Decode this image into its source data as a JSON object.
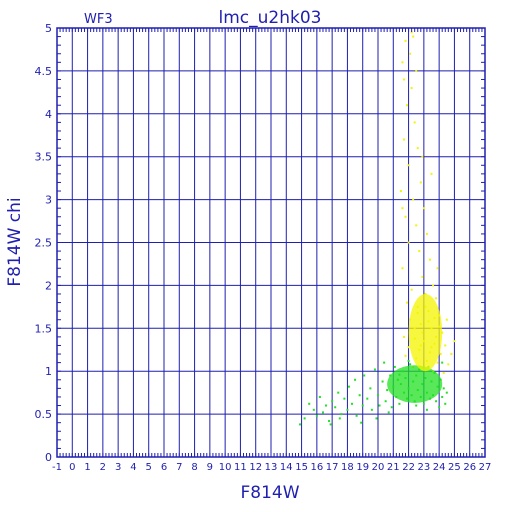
{
  "chart_data": {
    "type": "scatter",
    "title": "lmc_u2hk03",
    "corner_label": "WF3",
    "xlabel": "F814W",
    "ylabel": "F814W chi",
    "xlim": [
      -1,
      27
    ],
    "ylim": [
      0,
      5
    ],
    "x_ticks": [
      "-1",
      "0",
      "1",
      "2",
      "3",
      "4",
      "5",
      "6",
      "7",
      "8",
      "9",
      "10",
      "11",
      "12",
      "13",
      "14",
      "15",
      "16",
      "17",
      "18",
      "19",
      "20",
      "21",
      "22",
      "23",
      "24",
      "25",
      "26",
      "27"
    ],
    "y_ticks": [
      "0",
      "0.5",
      "1",
      "1.5",
      "2",
      "2.5",
      "3",
      "3.5",
      "4",
      "4.5",
      "5"
    ],
    "grid": true,
    "colors": {
      "axis": "#1f1fb0",
      "grid": "#1f1fb0",
      "green": "#22e022",
      "yellow": "#f4f400"
    },
    "series": [
      {
        "color": "green",
        "points": [
          [
            14.9,
            0.38
          ],
          [
            15.2,
            0.45
          ],
          [
            15.5,
            0.62
          ],
          [
            15.8,
            0.55
          ],
          [
            16.0,
            0.48
          ],
          [
            16.2,
            0.7
          ],
          [
            16.4,
            0.52
          ],
          [
            16.6,
            0.6
          ],
          [
            16.8,
            0.42
          ],
          [
            17.0,
            0.65
          ],
          [
            17.2,
            0.58
          ],
          [
            17.4,
            0.75
          ],
          [
            17.6,
            0.5
          ],
          [
            17.8,
            0.68
          ],
          [
            18.0,
            0.55
          ],
          [
            18.1,
            0.82
          ],
          [
            18.3,
            0.62
          ],
          [
            18.5,
            0.9
          ],
          [
            18.6,
            0.48
          ],
          [
            18.8,
            0.72
          ],
          [
            19.0,
            0.6
          ],
          [
            19.1,
            0.95
          ],
          [
            19.3,
            0.68
          ],
          [
            19.5,
            0.8
          ],
          [
            19.6,
            0.55
          ],
          [
            19.8,
            1.02
          ],
          [
            20.0,
            0.72
          ],
          [
            20.1,
            0.6
          ],
          [
            20.3,
            0.88
          ],
          [
            20.4,
            1.1
          ],
          [
            20.5,
            0.65
          ],
          [
            20.6,
            0.78
          ],
          [
            20.8,
            0.95
          ],
          [
            20.9,
            0.58
          ],
          [
            21.0,
            0.82
          ],
          [
            21.1,
            1.05
          ],
          [
            21.2,
            0.7
          ],
          [
            21.3,
            0.9
          ],
          [
            21.4,
            0.62
          ],
          [
            21.5,
            0.85
          ],
          [
            21.6,
            1.0
          ],
          [
            21.7,
            0.75
          ],
          [
            21.8,
            0.92
          ],
          [
            21.9,
            0.68
          ],
          [
            22.0,
            0.8
          ],
          [
            22.1,
            1.08
          ],
          [
            22.2,
            0.72
          ],
          [
            22.3,
            0.88
          ],
          [
            22.4,
            0.65
          ],
          [
            22.5,
            0.95
          ],
          [
            22.6,
            0.78
          ],
          [
            22.7,
            1.02
          ],
          [
            22.8,
            0.7
          ],
          [
            22.9,
            0.85
          ],
          [
            23.0,
            0.62
          ],
          [
            23.1,
            0.92
          ],
          [
            23.2,
            0.75
          ],
          [
            23.3,
            1.05
          ],
          [
            23.4,
            0.68
          ],
          [
            23.5,
            0.88
          ],
          [
            23.6,
            0.72
          ],
          [
            23.7,
            0.98
          ],
          [
            23.8,
            0.65
          ],
          [
            23.9,
            0.82
          ],
          [
            24.0,
            0.58
          ],
          [
            24.1,
            0.9
          ],
          [
            24.2,
            0.7
          ],
          [
            24.3,
            0.8
          ],
          [
            24.4,
            0.62
          ],
          [
            24.5,
            0.75
          ],
          [
            22.0,
            1.12
          ],
          [
            21.4,
            0.96
          ],
          [
            20.7,
            0.52
          ],
          [
            19.9,
            0.45
          ],
          [
            17.5,
            0.45
          ],
          [
            16.9,
            0.38
          ],
          [
            18.9,
            0.4
          ],
          [
            22.5,
            0.6
          ],
          [
            23.2,
            0.55
          ],
          [
            24.2,
            1.1
          ]
        ]
      },
      {
        "color": "yellow",
        "points": [
          [
            21.6,
            4.6
          ],
          [
            21.8,
            4.85
          ],
          [
            22.1,
            4.7
          ],
          [
            22.3,
            4.9
          ],
          [
            22.5,
            4.5
          ],
          [
            22.2,
            4.3
          ],
          [
            21.9,
            4.1
          ],
          [
            22.4,
            3.9
          ],
          [
            21.7,
            3.7
          ],
          [
            22.6,
            3.6
          ],
          [
            22.0,
            3.4
          ],
          [
            22.8,
            3.2
          ],
          [
            21.5,
            3.1
          ],
          [
            22.3,
            3.0
          ],
          [
            23.0,
            2.9
          ],
          [
            21.8,
            2.8
          ],
          [
            22.5,
            2.7
          ],
          [
            23.2,
            2.6
          ],
          [
            22.0,
            2.5
          ],
          [
            22.7,
            2.4
          ],
          [
            23.4,
            2.3
          ],
          [
            21.6,
            2.2
          ],
          [
            22.9,
            2.1
          ],
          [
            23.6,
            2.0
          ],
          [
            22.2,
            1.95
          ],
          [
            23.1,
            1.9
          ],
          [
            23.8,
            1.85
          ],
          [
            21.9,
            1.8
          ],
          [
            22.6,
            1.75
          ],
          [
            23.3,
            1.7
          ],
          [
            24.0,
            1.65
          ],
          [
            22.1,
            1.6
          ],
          [
            22.8,
            1.55
          ],
          [
            23.5,
            1.5
          ],
          [
            24.2,
            1.45
          ],
          [
            21.7,
            1.4
          ],
          [
            22.4,
            1.38
          ],
          [
            23.0,
            1.35
          ],
          [
            23.7,
            1.32
          ],
          [
            24.4,
            1.3
          ],
          [
            22.0,
            1.28
          ],
          [
            22.7,
            1.25
          ],
          [
            23.4,
            1.22
          ],
          [
            24.1,
            1.2
          ],
          [
            21.8,
            1.18
          ],
          [
            22.5,
            1.15
          ],
          [
            23.2,
            1.12
          ],
          [
            23.9,
            1.1
          ],
          [
            24.6,
            1.08
          ],
          [
            22.3,
            1.05
          ],
          [
            23.0,
            1.02
          ],
          [
            23.6,
            1.0
          ],
          [
            24.3,
            0.98
          ],
          [
            22.9,
            1.45
          ],
          [
            23.3,
            1.58
          ],
          [
            23.8,
            1.4
          ],
          [
            22.6,
            1.68
          ],
          [
            23.5,
            1.28
          ],
          [
            24.0,
            1.52
          ],
          [
            22.4,
            1.5
          ],
          [
            23.1,
            1.75
          ],
          [
            23.7,
            1.62
          ],
          [
            22.8,
            1.3
          ],
          [
            21.6,
            2.9
          ],
          [
            21.7,
            4.4
          ],
          [
            22.2,
            4.95
          ],
          [
            23.5,
            3.3
          ],
          [
            24.5,
            1.6
          ],
          [
            25.0,
            1.35
          ],
          [
            24.8,
            1.2
          ],
          [
            23.9,
            2.2
          ],
          [
            22.9,
            3.5
          ]
        ]
      }
    ]
  }
}
